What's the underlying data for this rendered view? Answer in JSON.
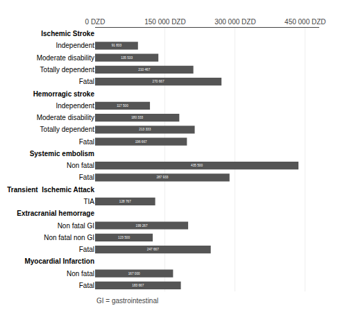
{
  "chart_data": {
    "type": "bar",
    "orientation": "horizontal",
    "categories": [
      "Ischemic Stroke",
      "Independent",
      "Moderate disability",
      "Totally dependent",
      "Fatal",
      "Hemorragic stroke",
      "Independent",
      "Moderate disability",
      "Totally dependent",
      "Fatal",
      "Systemic embolism",
      "Non fatal",
      "Fatal",
      "Transient  Ischemic Attack",
      "TIA",
      "Extracranial hemorrage",
      "Non fatal GI",
      "Non fatal non GI",
      "Fatal",
      "Myocardial Infarction",
      "Non fatal",
      "Fatal"
    ],
    "values": [
      null,
      91833,
      135533,
      210467,
      270667,
      null,
      117500,
      180333,
      213333,
      196667,
      null,
      435500,
      287933,
      null,
      128767,
      null,
      199267,
      123500,
      247667,
      null,
      167000,
      183667
    ],
    "value_labels": [
      null,
      "91 833",
      "135 533",
      "210 467",
      "270 667",
      null,
      "117 500",
      "180 333",
      "213 333",
      "196 667",
      null,
      "435 500",
      "287 933",
      null,
      "128 767",
      null,
      "199 267",
      "123 500",
      "247 667",
      null,
      "167 000",
      "183 667"
    ],
    "data_labels": true,
    "color": "#555555",
    "xlim": [
      0,
      480000
    ],
    "xticks": [
      {
        "value": 0,
        "label": "0 DZD"
      },
      {
        "value": 150000,
        "label": "150 000 DZD"
      },
      {
        "value": 300000,
        "label": "300 000 DZD"
      },
      {
        "value": 450000,
        "label": "450 000 DZD"
      }
    ],
    "grid": true,
    "annotations": [
      "GI = gastrointestinal"
    ]
  }
}
